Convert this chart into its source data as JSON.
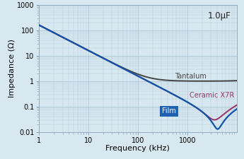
{
  "title_annotation": "1.0μF",
  "xlabel": "Frequency (kHz)",
  "ylabel": "Impedance (Ω)",
  "xlim": [
    1,
    10000
  ],
  "ylim": [
    0.01,
    1000
  ],
  "bg_color": "#d8e8f0",
  "plot_bg_color": "#d8e8f0",
  "tantalum_color": "#444444",
  "ceramic_color": "#993366",
  "film_color": "#1155aa",
  "film_label_bg": "#2060b0",
  "film_label_color": "#ffffff",
  "tantalum_label": "Tantalum",
  "ceramic_label": "Ceramic X7R",
  "film_label": "Film",
  "grid_color": "#b0c8d8",
  "tick_label_fontsize": 7.0,
  "axis_label_fontsize": 8.0,
  "annotation_fontsize": 8.5
}
